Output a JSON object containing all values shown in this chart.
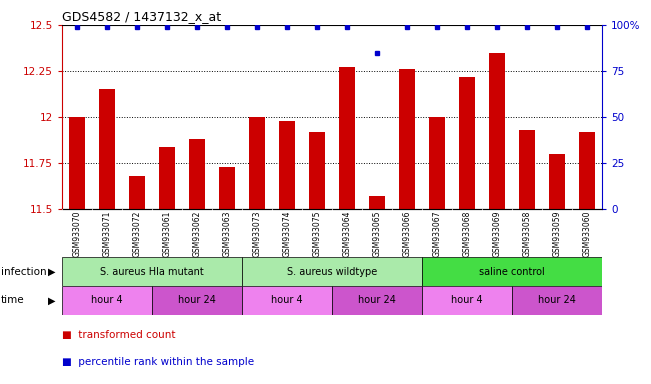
{
  "title": "GDS4582 / 1437132_x_at",
  "samples": [
    "GSM933070",
    "GSM933071",
    "GSM933072",
    "GSM933061",
    "GSM933062",
    "GSM933063",
    "GSM933073",
    "GSM933074",
    "GSM933075",
    "GSM933064",
    "GSM933065",
    "GSM933066",
    "GSM933067",
    "GSM933068",
    "GSM933069",
    "GSM933058",
    "GSM933059",
    "GSM933060"
  ],
  "bar_values": [
    12.0,
    12.15,
    11.68,
    11.84,
    11.88,
    11.73,
    12.0,
    11.98,
    11.92,
    12.27,
    11.57,
    12.26,
    12.0,
    12.22,
    12.35,
    11.93,
    11.8,
    11.92
  ],
  "percentile_values": [
    99,
    99,
    99,
    99,
    99,
    99,
    99,
    99,
    99,
    99,
    85,
    99,
    99,
    99,
    99,
    99,
    99,
    99
  ],
  "bar_color": "#cc0000",
  "dot_color": "#0000cc",
  "ylim_left": [
    11.5,
    12.5
  ],
  "ylim_right": [
    0,
    100
  ],
  "yticks_left": [
    11.5,
    11.75,
    12.0,
    12.25,
    12.5
  ],
  "yticks_right": [
    0,
    25,
    50,
    75,
    100
  ],
  "ytick_labels_left": [
    "11.5",
    "11.75",
    "12",
    "12.25",
    "12.5"
  ],
  "ytick_labels_right": [
    "0",
    "25",
    "50",
    "75",
    "100%"
  ],
  "infection_groups": [
    {
      "label": "S. aureus Hla mutant",
      "start": 0,
      "end": 6,
      "color": "#aaeaaa"
    },
    {
      "label": "S. aureus wildtype",
      "start": 6,
      "end": 12,
      "color": "#aaeaaa"
    },
    {
      "label": "saline control",
      "start": 12,
      "end": 18,
      "color": "#44dd44"
    }
  ],
  "time_groups": [
    {
      "label": "hour 4",
      "start": 0,
      "end": 3,
      "color": "#ee82ee"
    },
    {
      "label": "hour 24",
      "start": 3,
      "end": 6,
      "color": "#cc55cc"
    },
    {
      "label": "hour 4",
      "start": 6,
      "end": 9,
      "color": "#ee82ee"
    },
    {
      "label": "hour 24",
      "start": 9,
      "end": 12,
      "color": "#cc55cc"
    },
    {
      "label": "hour 4",
      "start": 12,
      "end": 15,
      "color": "#ee82ee"
    },
    {
      "label": "hour 24",
      "start": 15,
      "end": 18,
      "color": "#cc55cc"
    }
  ],
  "legend_items": [
    {
      "label": "transformed count",
      "color": "#cc0000"
    },
    {
      "label": "percentile rank within the sample",
      "color": "#0000cc"
    }
  ],
  "infection_label": "infection",
  "time_label": "time",
  "background_color": "#ffffff",
  "axis_label_color_left": "#cc0000",
  "axis_label_color_right": "#0000cc",
  "xticklabel_bg": "#d8d8d8"
}
